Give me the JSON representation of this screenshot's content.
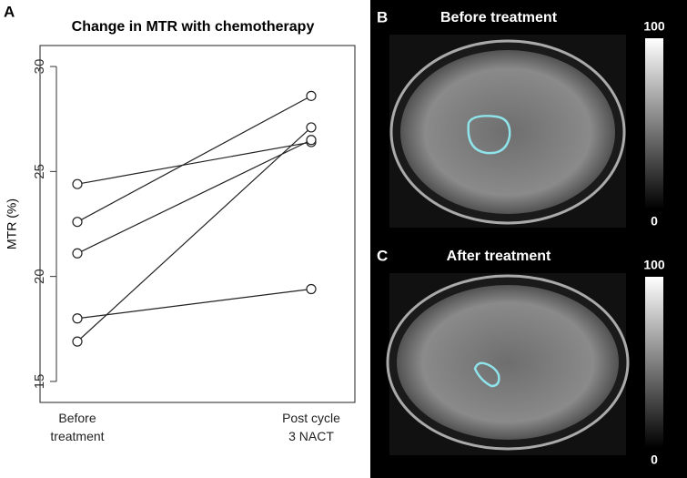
{
  "chart_data": {
    "type": "line",
    "panel_label": "A",
    "title": "Change in MTR with chemotherapy",
    "y_label": "MTR (%)",
    "categories": [
      "Before\ntreatment",
      "Post cycle\n3 NACT"
    ],
    "series": [
      {
        "color": "#222222",
        "values": [
          24.4,
          26.4
        ]
      },
      {
        "color": "#222222",
        "values": [
          22.6,
          28.6
        ]
      },
      {
        "color": "#222222",
        "values": [
          21.1,
          26.5
        ]
      },
      {
        "color": "#222222",
        "values": [
          18.0,
          19.4
        ]
      },
      {
        "color": "#222222",
        "values": [
          16.9,
          27.1
        ]
      }
    ],
    "ylim": [
      14,
      31
    ],
    "yticks": [
      15,
      20,
      25,
      30
    ]
  },
  "images": [
    {
      "label": "B",
      "title": "Before treatment",
      "colorbar_max": 100,
      "colorbar_min": 0
    },
    {
      "label": "C",
      "title": "After treatment",
      "colorbar_max": 100,
      "colorbar_min": 0
    }
  ]
}
